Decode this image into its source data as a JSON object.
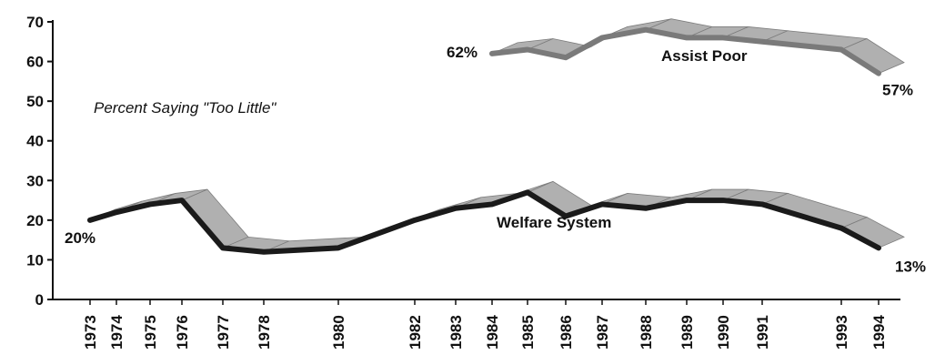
{
  "chart_data": {
    "type": "line",
    "subtitle": "Percent Saying \"Too Little\"",
    "ylim": [
      0,
      70
    ],
    "yticks": [
      0,
      10,
      20,
      30,
      40,
      50,
      60,
      70
    ],
    "x_categories": [
      "1973",
      "1974",
      "1975",
      "1976",
      "1977",
      "1978",
      "1980",
      "1982",
      "1983",
      "1984",
      "1985",
      "1986",
      "1987",
      "1988",
      "1989",
      "1990",
      "1991",
      "1993",
      "1994"
    ],
    "series": [
      {
        "name": "Welfare System",
        "x": [
          "1973",
          "1974",
          "1975",
          "1976",
          "1977",
          "1978",
          "1980",
          "1982",
          "1983",
          "1984",
          "1985",
          "1986",
          "1987",
          "1988",
          "1989",
          "1990",
          "1991",
          "1993",
          "1994"
        ],
        "values": [
          20,
          22,
          24,
          25,
          13,
          12,
          13,
          20,
          23,
          24,
          27,
          21,
          24,
          23,
          25,
          25,
          24,
          18,
          13
        ],
        "start_label": "20%",
        "end_label": "13%",
        "color": "#1a1a1a",
        "band_color": "#b0b0b0"
      },
      {
        "name": "Assist Poor",
        "x": [
          "1984",
          "1985",
          "1986",
          "1987",
          "1988",
          "1989",
          "1990",
          "1991",
          "1993",
          "1994"
        ],
        "values": [
          62,
          63,
          61,
          66,
          68,
          66,
          66,
          65,
          63,
          57
        ],
        "start_label": "62%",
        "end_label": "57%",
        "color": "#7a7a7a",
        "band_color": "#b0b0b0"
      }
    ]
  }
}
